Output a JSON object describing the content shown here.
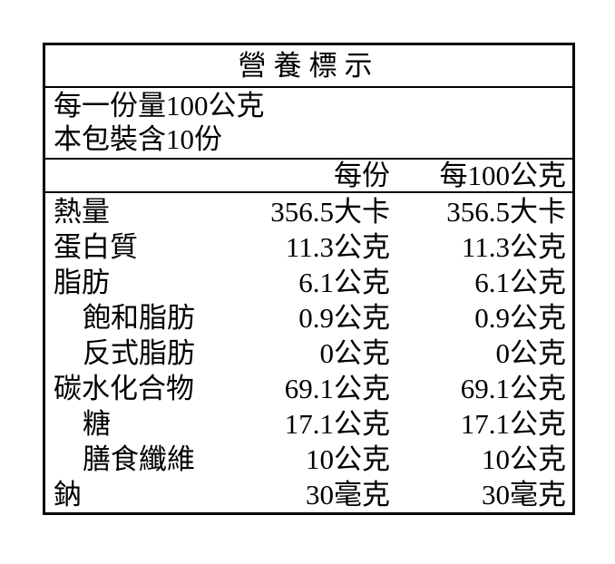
{
  "label": {
    "title": "營養標示",
    "serving_size": "每一份量100公克",
    "servings_per_package": "本包裝含10份",
    "columns": [
      "每份",
      "每100公克"
    ],
    "rows": [
      {
        "name": "熱量",
        "indent": false,
        "per_serving": "356.5大卡",
        "per_100g": "356.5大卡"
      },
      {
        "name": "蛋白質",
        "indent": false,
        "per_serving": "11.3公克",
        "per_100g": "11.3公克"
      },
      {
        "name": "脂肪",
        "indent": false,
        "per_serving": "6.1公克",
        "per_100g": "6.1公克"
      },
      {
        "name": "飽和脂肪",
        "indent": true,
        "per_serving": "0.9公克",
        "per_100g": "0.9公克"
      },
      {
        "name": "反式脂肪",
        "indent": true,
        "per_serving": "0公克",
        "per_100g": "0公克"
      },
      {
        "name": "碳水化合物",
        "indent": false,
        "per_serving": "69.1公克",
        "per_100g": "69.1公克"
      },
      {
        "name": "糖",
        "indent": true,
        "per_serving": "17.1公克",
        "per_100g": "17.1公克"
      },
      {
        "name": "膳食纖維",
        "indent": true,
        "per_serving": "10公克",
        "per_100g": "10公克"
      },
      {
        "name": "鈉",
        "indent": false,
        "per_serving": "30毫克",
        "per_100g": "30毫克"
      }
    ],
    "colors": {
      "border": "#000000",
      "text": "#000000",
      "background": "#ffffff"
    }
  }
}
